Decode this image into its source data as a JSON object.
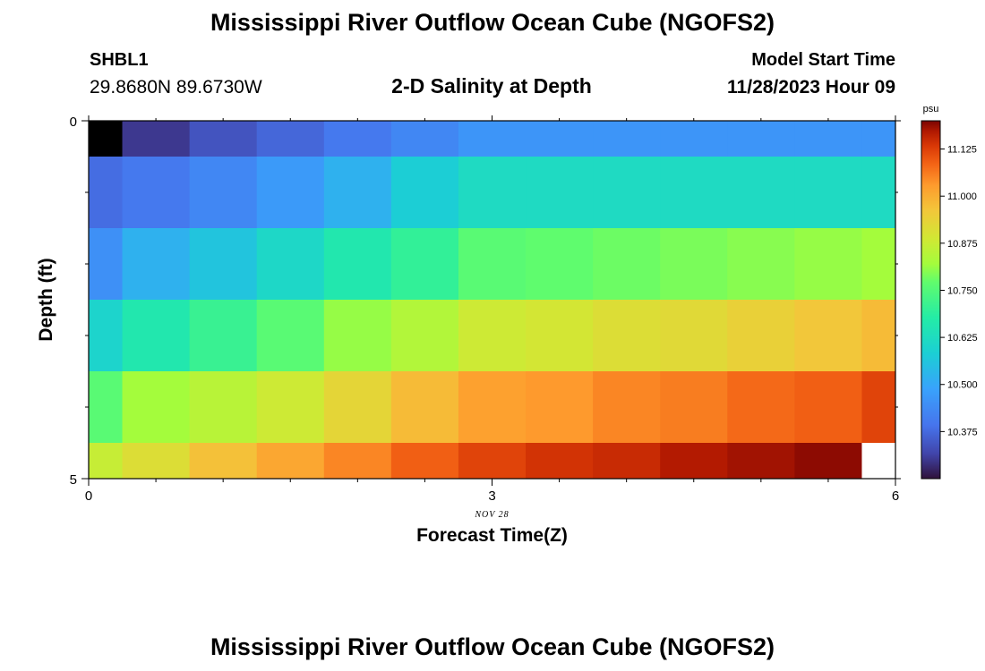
{
  "header": {
    "title": "Mississippi River Outflow Ocean Cube (NGOFS2)",
    "station": "SHBL1",
    "coordinates": "29.8680N  89.6730W",
    "subtitle": "2-D Salinity at Depth",
    "start_label": "Model Start Time",
    "start_value": "11/28/2023 Hour 09"
  },
  "footer": {
    "title": "Mississippi River Outflow Ocean Cube (NGOFS2)"
  },
  "chart_data": {
    "type": "heatmap",
    "title": "2-D Salinity at Depth",
    "xlabel": "Forecast Time(Z)",
    "ylabel": "Depth (ft)",
    "x_date_label": "NOV 28",
    "xlim": [
      0,
      6
    ],
    "ylim": [
      0,
      5
    ],
    "x_ticks": [
      0,
      3,
      6
    ],
    "y_ticks": [
      0,
      5
    ],
    "x_edges": [
      0,
      0.25,
      0.75,
      1.25,
      1.75,
      2.25,
      2.75,
      3.25,
      3.75,
      4.25,
      4.75,
      5.25,
      5.75,
      6.0
    ],
    "y_edges": [
      0,
      0.5,
      1.5,
      2.5,
      3.5,
      4.5,
      5.0
    ],
    "values": [
      [
        10.24,
        10.3,
        10.34,
        10.37,
        10.4,
        10.43,
        10.46,
        10.46,
        10.46,
        10.46,
        10.46,
        10.46,
        10.46
      ],
      [
        10.38,
        10.4,
        10.43,
        10.47,
        10.52,
        10.58,
        10.62,
        10.62,
        10.62,
        10.62,
        10.62,
        10.62,
        10.62
      ],
      [
        10.45,
        10.52,
        10.56,
        10.61,
        10.66,
        10.7,
        10.76,
        10.77,
        10.78,
        10.79,
        10.8,
        10.81,
        10.82
      ],
      [
        10.6,
        10.66,
        10.71,
        10.76,
        10.81,
        10.84,
        10.88,
        10.89,
        10.91,
        10.92,
        10.94,
        10.96,
        10.98
      ],
      [
        10.76,
        10.82,
        10.85,
        10.88,
        10.93,
        10.98,
        11.02,
        11.03,
        11.05,
        11.06,
        11.08,
        11.09,
        11.12
      ],
      [
        10.87,
        10.91,
        10.97,
        11.01,
        11.05,
        11.09,
        11.12,
        11.14,
        11.15,
        11.17,
        11.18,
        11.19,
        null
      ]
    ],
    "colorbar": {
      "unit": "psu",
      "range": [
        10.25,
        11.2
      ],
      "ticks": [
        "10.375",
        "10.500",
        "10.625",
        "10.750",
        "10.875",
        "11.000",
        "11.125"
      ]
    }
  }
}
